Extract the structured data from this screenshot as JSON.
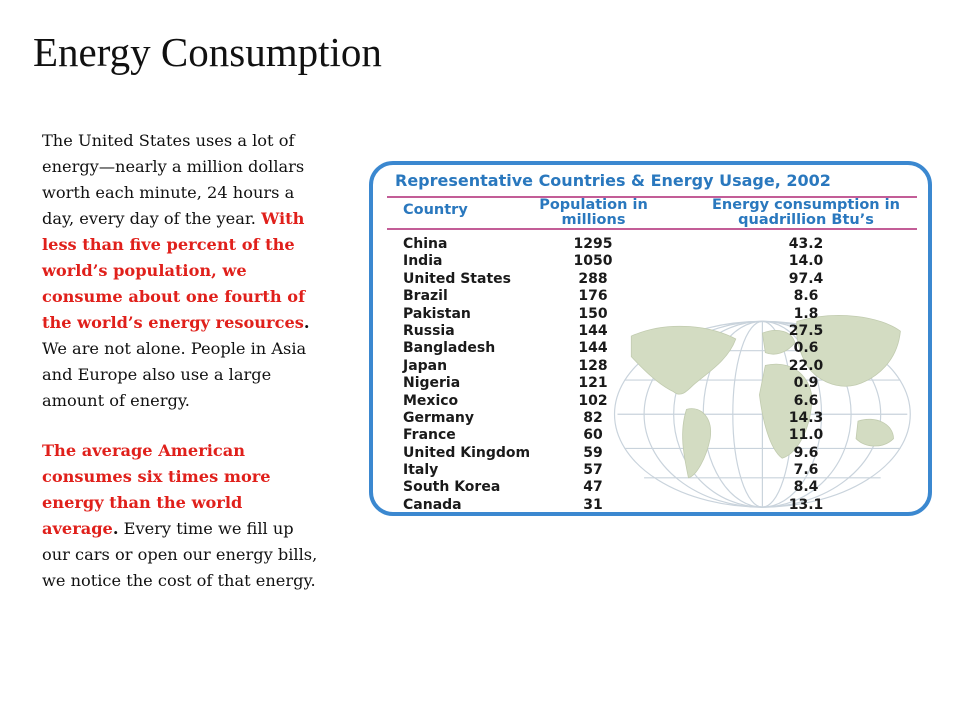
{
  "slide": {
    "title": "Energy Consumption",
    "paragraph1": {
      "part1": "The United States uses a lot of energy—nearly a million dollars worth each minute, 24 hours a day, every day of the year. ",
      "highlight": "With less than five percent of the world’s population, we consume about one fourth of the world’s energy resources",
      "period": ".",
      "part2": " We are not alone. People in Asia and Europe also use a large amount of energy."
    },
    "paragraph2": {
      "highlight": "The average American consumes six times more energy than the world average",
      "period": ".",
      "part2": " Every time we fill up our cars or open our energy bills, we notice the cost of that energy."
    }
  },
  "table": {
    "title": "Representative Countries & Energy Usage, 2002",
    "headers": {
      "country": "Country",
      "population_line1": "Population in",
      "population_line2": "millions",
      "energy_line1": "Energy consumption in",
      "energy_line2": "quadrillion Btu’s"
    },
    "rows": [
      {
        "country": "China",
        "population": "1295",
        "energy": "43.2"
      },
      {
        "country": "India",
        "population": "1050",
        "energy": "14.0"
      },
      {
        "country": "United States",
        "population": "288",
        "energy": "97.4"
      },
      {
        "country": "Brazil",
        "population": "176",
        "energy": "8.6"
      },
      {
        "country": "Pakistan",
        "population": "150",
        "energy": "1.8"
      },
      {
        "country": "Russia",
        "population": "144",
        "energy": "27.5"
      },
      {
        "country": "Bangladesh",
        "population": "144",
        "energy": "0.6"
      },
      {
        "country": "Japan",
        "population": "128",
        "energy": "22.0"
      },
      {
        "country": "Nigeria",
        "population": "121",
        "energy": "0.9"
      },
      {
        "country": "Mexico",
        "population": "102",
        "energy": "6.6"
      },
      {
        "country": "Germany",
        "population": "82",
        "energy": "14.3"
      },
      {
        "country": "France",
        "population": "60",
        "energy": "11.0"
      },
      {
        "country": "United Kingdom",
        "population": "59",
        "energy": "9.6"
      },
      {
        "country": "Italy",
        "population": "57",
        "energy": "7.6"
      },
      {
        "country": "South Korea",
        "population": "47",
        "energy": "8.4"
      },
      {
        "country": "Canada",
        "population": "31",
        "energy": "13.1"
      }
    ]
  },
  "colors": {
    "highlight": "#e0201b",
    "table_border": "#3b88d0",
    "table_heading": "#2a78be",
    "rule": "#c35d97",
    "map_land": "#d3dcc2",
    "map_grid": "#c9d3dc"
  }
}
